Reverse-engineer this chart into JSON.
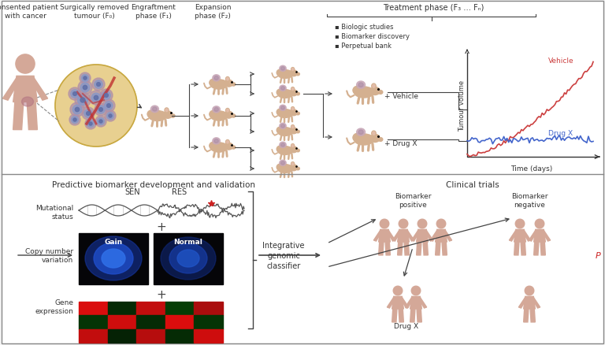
{
  "bg_color": "#f5f5f5",
  "panel_bg": "#ffffff",
  "border_color": "#888888",
  "top_panel": {
    "labels": {
      "patient": "Consented patient\nwith cancer",
      "tumour": "Surgically removed\ntumour (F₀)",
      "engraftment": "Engraftment\nphase (F₁)",
      "expansion": "Expansion\nphase (F₂)",
      "treatment": "Treatment phase (F₃ … Fₙ)"
    },
    "bullet_items": [
      "▪ Biologic studies",
      "▪ Biomarker discovery",
      "▪ Perpetual bank"
    ],
    "vehicle_label": "Vehicle",
    "drugx_label": "Drug X",
    "tumour_vol_label": "Tumour volume",
    "time_label": "Time (days)",
    "vehicle_label2": "+ Vehicle",
    "drugx_label2": "+ Drug X"
  },
  "bottom_panel": {
    "title": "Predictive biomarker development and validation",
    "clinical_title": "Clinical trials",
    "labels": {
      "mutational": "Mutational\nstatus",
      "copy_number": "Copy number\nvariation",
      "gene_expr": "Gene\nexpression",
      "integrative": "Integrative\ngenomic\nclassifier",
      "sen": "SEN",
      "res": "RES",
      "gain": "Gain",
      "normal": "Normal",
      "biomarker_pos": "Biomarker\npositive",
      "biomarker_neg": "Biomarker\nnegative",
      "drug_x": "Drug X"
    }
  },
  "skin_color": "#d4a898",
  "mouse_body_color": "#d4b090",
  "mouse_tumor_color": "#c0a0b0",
  "tumor_circle_bg": "#e8d090",
  "cell_outer": "#b090a8",
  "cell_inner": "#8090c0",
  "vessel_color": "#c03030"
}
